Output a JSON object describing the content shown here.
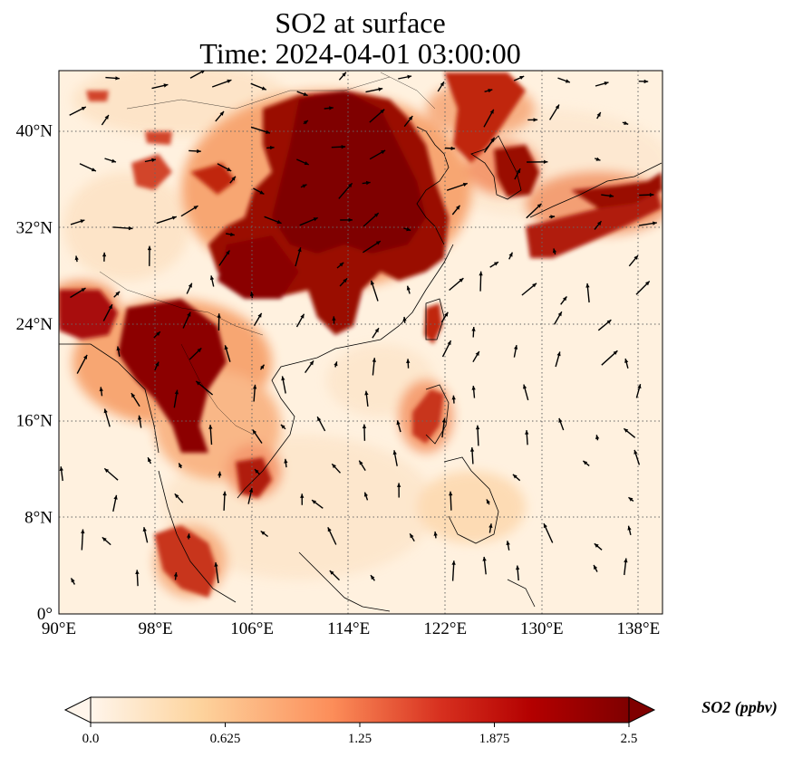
{
  "title_line1": "SO2 at surface",
  "title_line2": "Time: 2024-04-01 03:00:00",
  "map": {
    "lon_range": [
      90,
      140
    ],
    "lat_range": [
      0,
      45
    ],
    "x_ticks": [
      {
        "value": 90,
        "label": "90°E"
      },
      {
        "value": 98,
        "label": "98°E"
      },
      {
        "value": 106,
        "label": "106°E"
      },
      {
        "value": 114,
        "label": "114°E"
      },
      {
        "value": 122,
        "label": "122°E"
      },
      {
        "value": 130,
        "label": "130°E"
      },
      {
        "value": 138,
        "label": "138°E"
      }
    ],
    "y_ticks": [
      {
        "value": 0,
        "label": "0°"
      },
      {
        "value": 8,
        "label": "8°N"
      },
      {
        "value": 16,
        "label": "16°N"
      },
      {
        "value": 24,
        "label": "24°N"
      },
      {
        "value": 32,
        "label": "32°N"
      },
      {
        "value": 40,
        "label": "40°N"
      }
    ],
    "gridlines": true,
    "wind_vectors": true
  },
  "colorbar": {
    "title": "SO2 (ppbv)",
    "min": 0.0,
    "max": 2.5,
    "extend": "both",
    "ticks": [
      "0.0",
      "0.625",
      "1.25",
      "1.875",
      "2.5"
    ],
    "colors": [
      "#fff5eb",
      "#fdd49e",
      "#fc8d59",
      "#d7301f",
      "#b30000",
      "#7f0000"
    ]
  }
}
